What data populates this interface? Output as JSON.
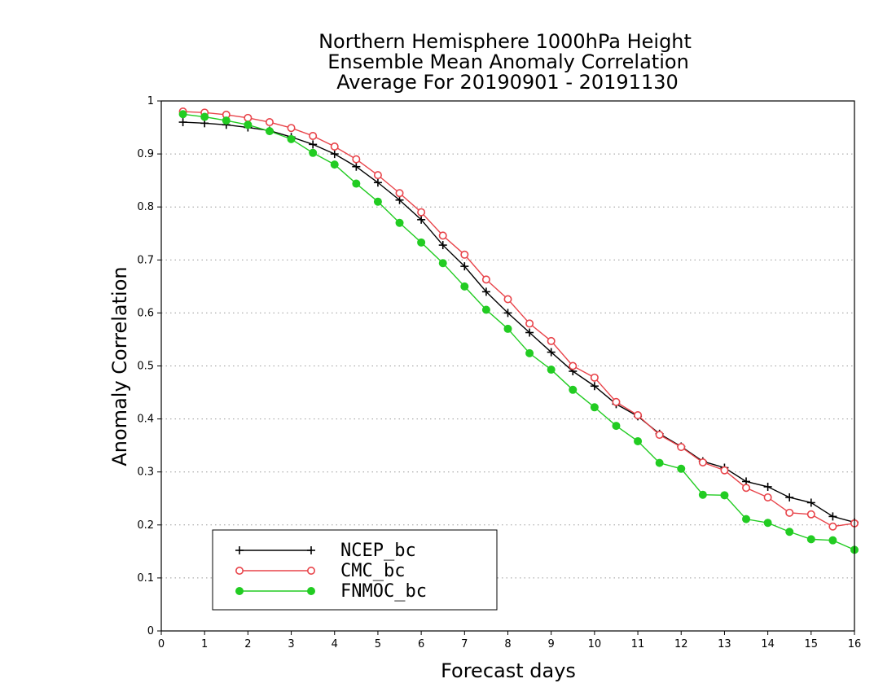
{
  "chart_data": {
    "type": "line",
    "title": [
      "Northern Hemisphere 1000hPa Height",
      "Ensemble Mean Anomaly Correlation",
      "Average For 20190901 - 20191130"
    ],
    "xlabel": "Forecast days",
    "ylabel": "Anomaly Correlation",
    "xlim": [
      0,
      16
    ],
    "ylim": [
      0,
      1
    ],
    "x_ticks": [
      0,
      1,
      2,
      3,
      4,
      5,
      6,
      7,
      8,
      9,
      10,
      11,
      12,
      13,
      14,
      15,
      16
    ],
    "y_ticks": [
      0,
      0.1,
      0.2,
      0.3,
      0.4,
      0.5,
      0.6,
      0.7,
      0.8,
      0.9,
      1
    ],
    "y_tick_labels": [
      "0",
      "0.1",
      "0.2",
      "0.3",
      "0.4",
      "0.5",
      "0.6",
      "0.7",
      "0.8",
      "0.9",
      "1"
    ],
    "grid": "horizontal dotted",
    "legend_position": "lower-left",
    "x": [
      0.5,
      1,
      1.5,
      2,
      2.5,
      3,
      3.5,
      4,
      4.5,
      5,
      5.5,
      6,
      6.5,
      7,
      7.5,
      8,
      8.5,
      9,
      9.5,
      10,
      10.5,
      11,
      11.5,
      12,
      12.5,
      13,
      13.5,
      14,
      14.5,
      15,
      15.5,
      16
    ],
    "series": [
      {
        "name": "NCEP_bc",
        "color": "#000000",
        "marker": "plus",
        "values": [
          0.96,
          0.958,
          0.955,
          0.95,
          0.944,
          0.932,
          0.918,
          0.9,
          0.876,
          0.846,
          0.813,
          0.776,
          0.728,
          0.688,
          0.64,
          0.6,
          0.563,
          0.526,
          0.49,
          0.462,
          0.428,
          0.405,
          0.372,
          0.348,
          0.32,
          0.308,
          0.282,
          0.272,
          0.252,
          0.242,
          0.216,
          0.205
        ]
      },
      {
        "name": "CMC_bc",
        "color": "#e8444a",
        "marker": "open-circle",
        "values": [
          0.98,
          0.978,
          0.974,
          0.968,
          0.96,
          0.949,
          0.934,
          0.914,
          0.89,
          0.86,
          0.826,
          0.79,
          0.746,
          0.71,
          0.663,
          0.626,
          0.58,
          0.547,
          0.5,
          0.478,
          0.432,
          0.407,
          0.37,
          0.347,
          0.318,
          0.303,
          0.27,
          0.252,
          0.223,
          0.22,
          0.197,
          0.203
        ]
      },
      {
        "name": "FNMOC_bc",
        "color": "#22cc22",
        "marker": "filled-circle",
        "values": [
          0.975,
          0.97,
          0.963,
          0.955,
          0.943,
          0.928,
          0.902,
          0.88,
          0.844,
          0.81,
          0.77,
          0.733,
          0.694,
          0.65,
          0.606,
          0.57,
          0.524,
          0.493,
          0.455,
          0.422,
          0.387,
          0.358,
          0.317,
          0.306,
          0.257,
          0.256,
          0.211,
          0.204,
          0.187,
          0.173,
          0.171,
          0.153
        ]
      }
    ]
  }
}
